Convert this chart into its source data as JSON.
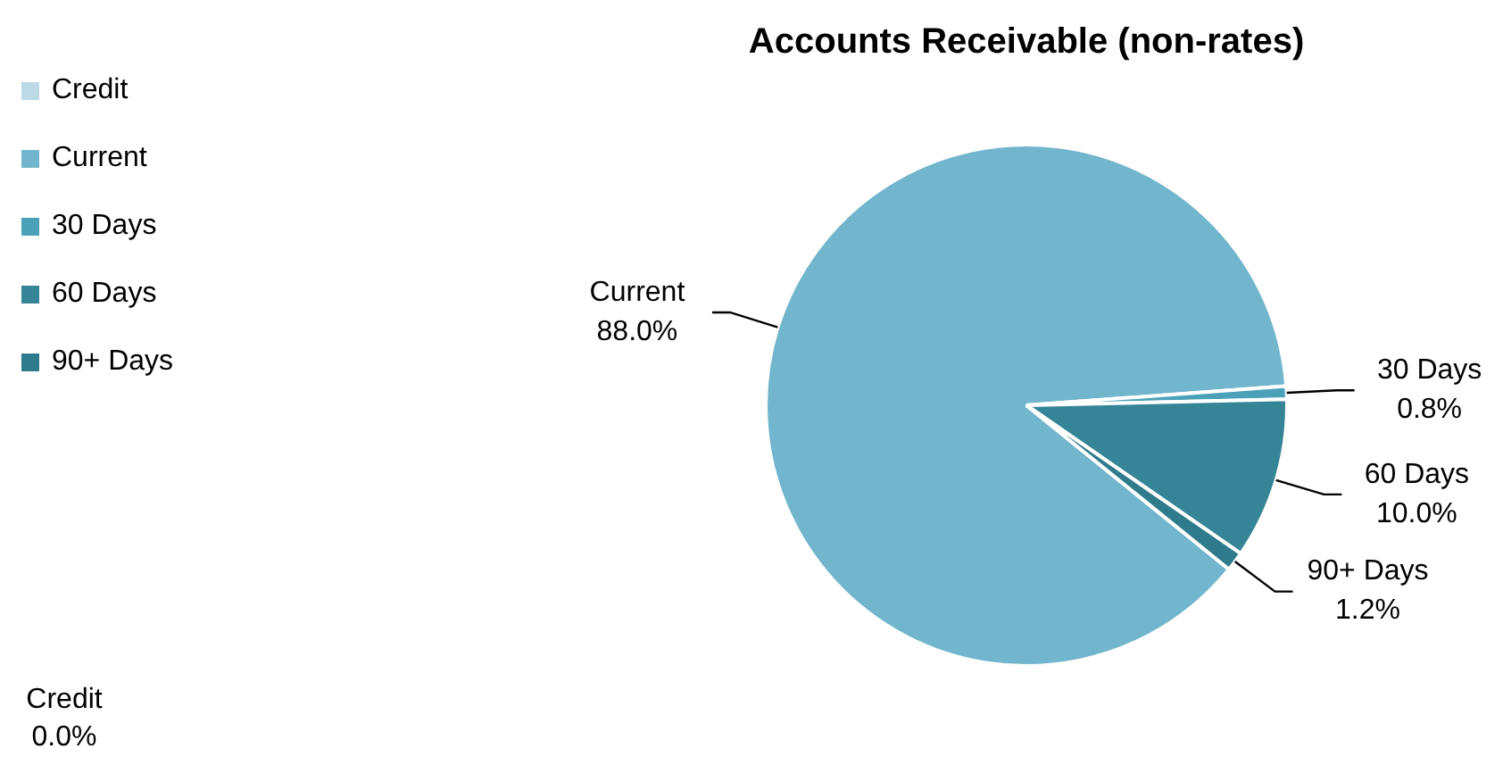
{
  "chart_data": {
    "type": "pie",
    "title": "Accounts Receivable (non-rates)",
    "categories": [
      "Credit",
      "Current",
      "30 Days",
      "60 Days",
      "90+ Days"
    ],
    "values": [
      0.0,
      88.0,
      0.8,
      10.0,
      1.2
    ],
    "value_labels": [
      "0.0%",
      "88.0%",
      "0.8%",
      "10.0%",
      "1.2%"
    ],
    "colors": [
      "#bcd9e6",
      "#71b6cd",
      "#4ba1b8",
      "#368597",
      "#2f7b8c"
    ],
    "legend": "top left"
  }
}
